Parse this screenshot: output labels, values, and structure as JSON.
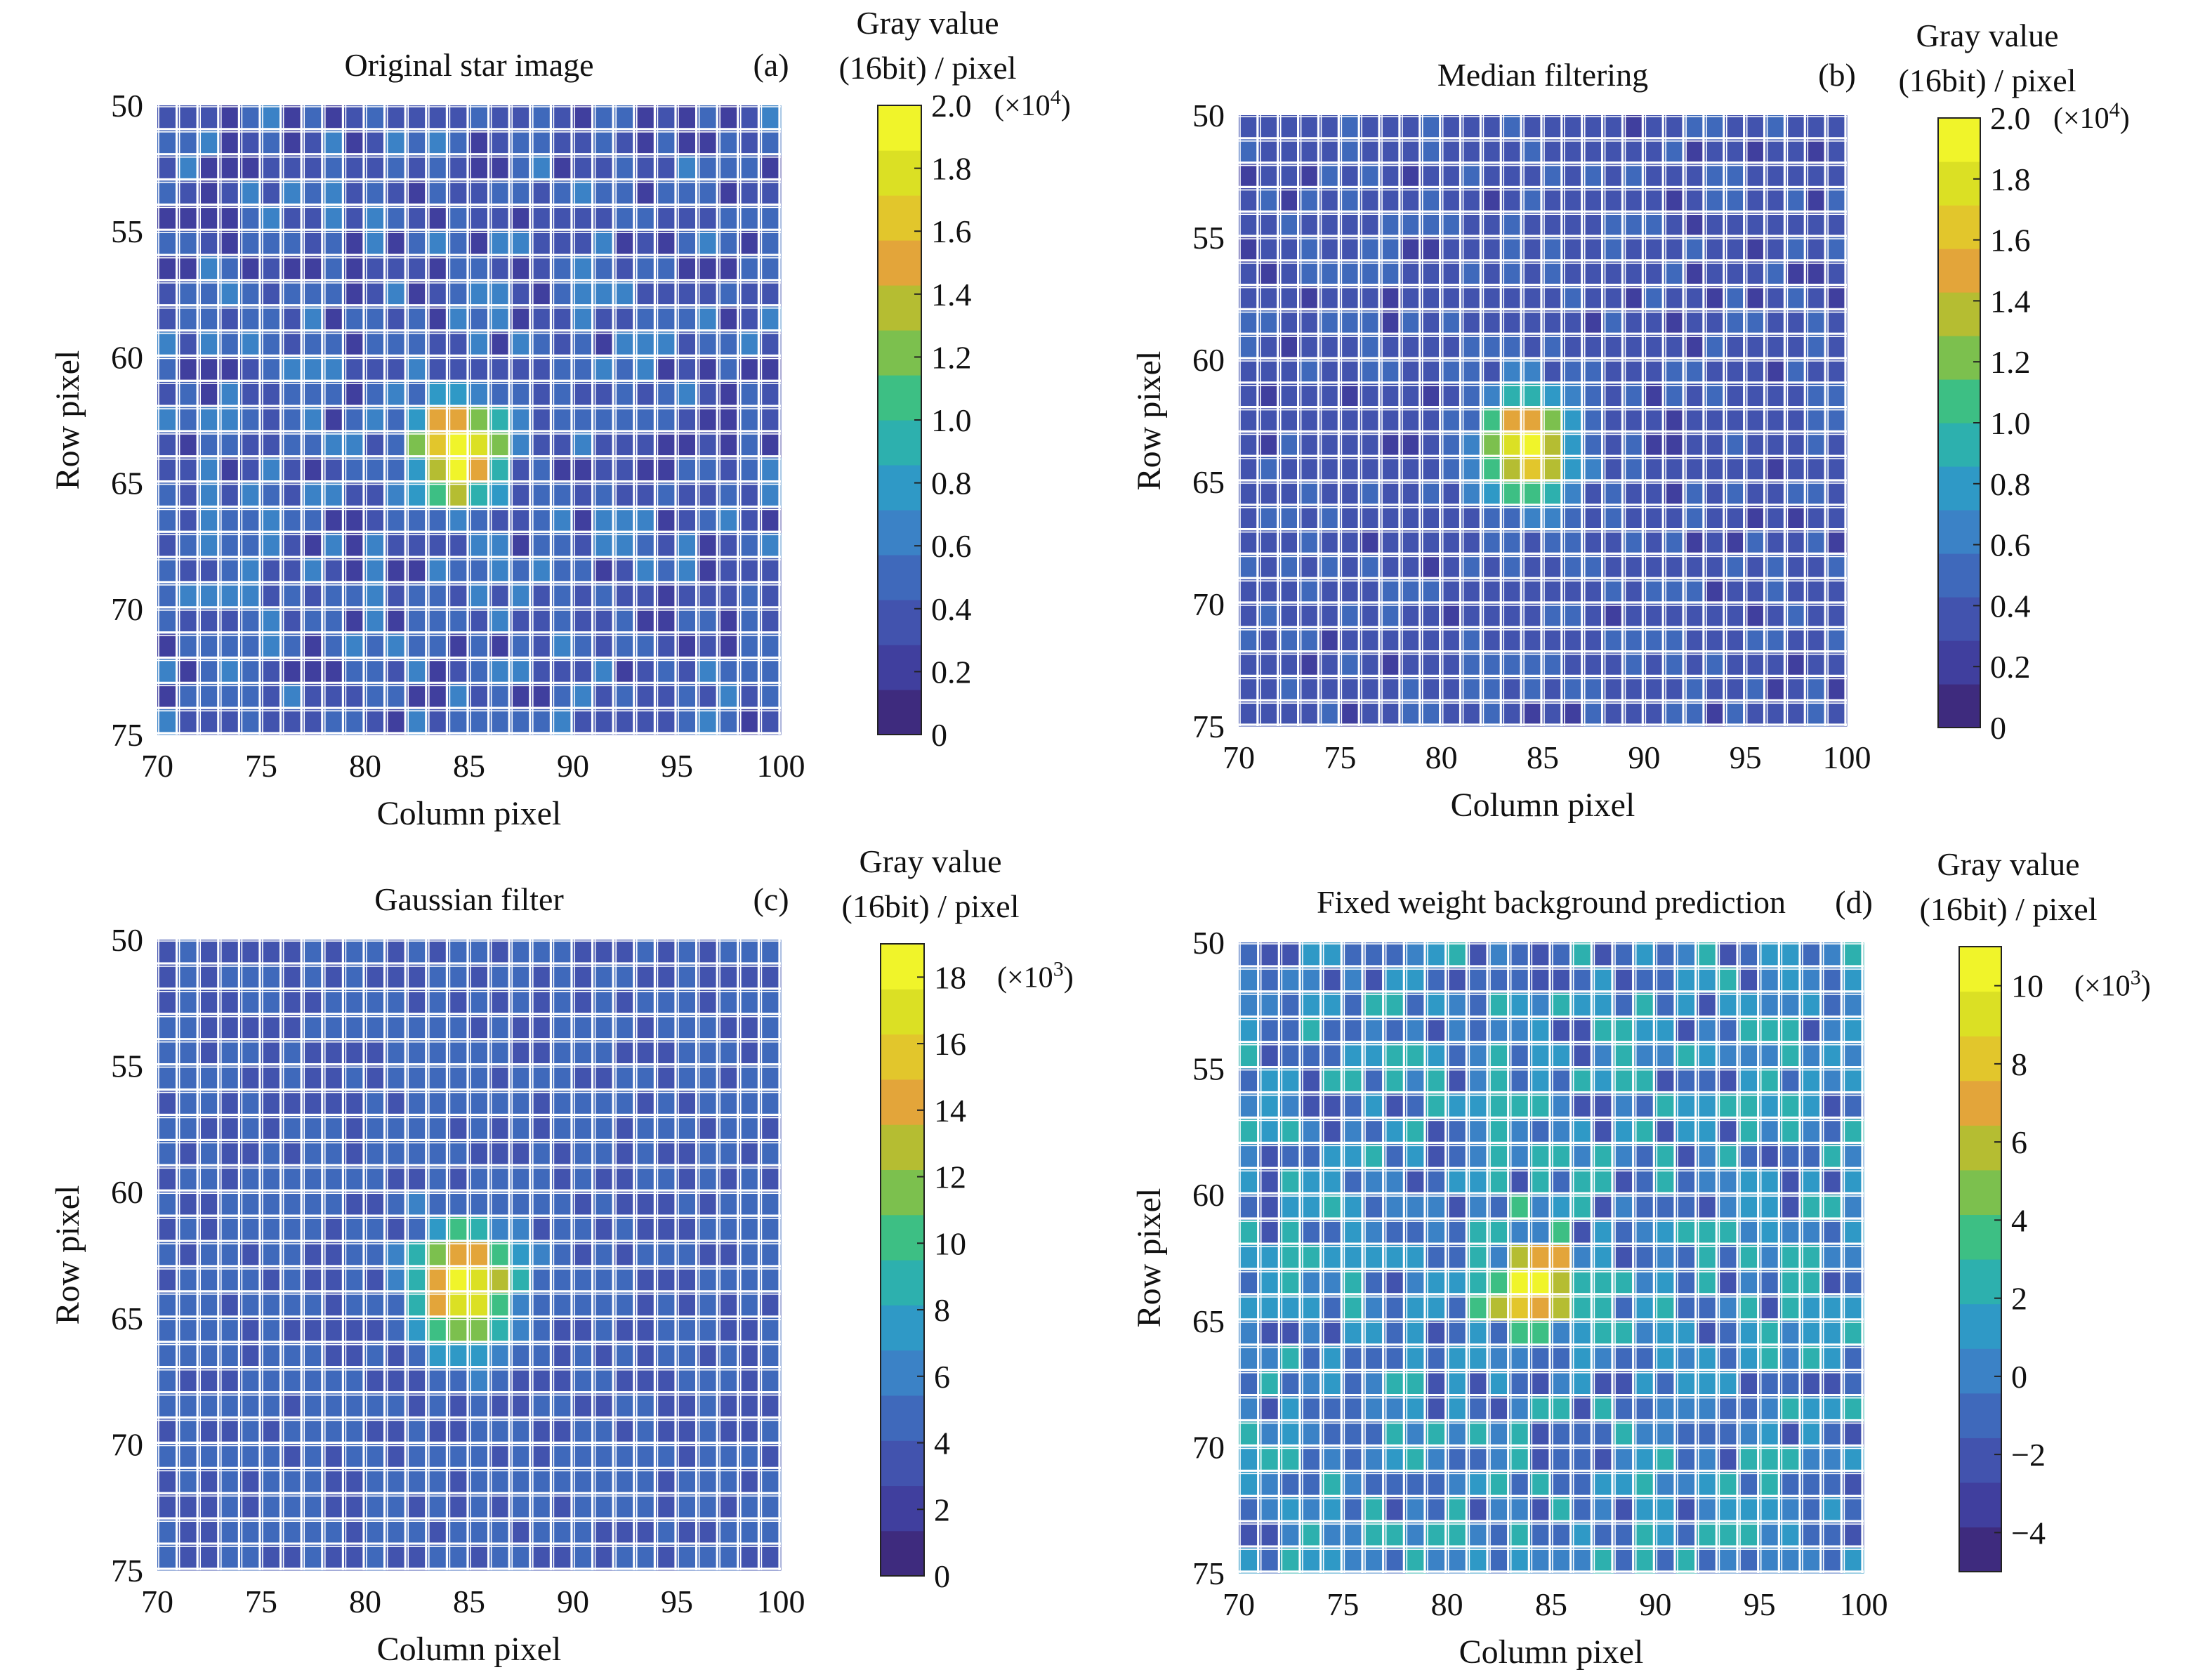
{
  "colors": {
    "grid_lines": "#ffffff",
    "colormap": [
      "#3e2b7e",
      "#403f9e",
      "#4253ae",
      "#3f69bb",
      "#3b82c6",
      "#2f99c6",
      "#2db0ae",
      "#3dbf84",
      "#7cc04e",
      "#b5bd32",
      "#e3a53a",
      "#e2c62c",
      "#dbe024",
      "#f0f42a"
    ]
  },
  "chart_data": [
    {
      "type": "heatmap",
      "panel_tag": "(a)",
      "title": "Original star image",
      "xlabel": "Column pixel",
      "ylabel": "Row pixel",
      "xlim": [
        70,
        100
      ],
      "ylim": [
        75,
        50
      ],
      "xticks": [
        70,
        75,
        80,
        85,
        90,
        95,
        100
      ],
      "yticks": [
        50,
        55,
        60,
        65,
        70,
        75
      ],
      "colorbar": {
        "title_line1": "Gray value",
        "title_line2": "(16bit) / pixel",
        "min": 0,
        "max": 20000,
        "ticks": [
          0,
          2000,
          4000,
          6000,
          8000,
          10000,
          12000,
          14000,
          16000,
          18000,
          20000
        ],
        "tick_labels": [
          "0",
          "0.2",
          "0.4",
          "0.6",
          "0.8",
          "1.0",
          "1.2",
          "1.4",
          "1.6",
          "1.8",
          "2.0"
        ],
        "multiplier_base": "(×10",
        "multiplier_exp": "4",
        "multiplier_close": ")"
      },
      "background_value": 4200,
      "noise_amplitude": 2200,
      "peak": {
        "column": 84.5,
        "row": 63.8,
        "amplitude": 15800,
        "sigma": 1.45
      }
    },
    {
      "type": "heatmap",
      "panel_tag": "(b)",
      "title": "Median filtering",
      "xlabel": "Column pixel",
      "ylabel": "Row pixel",
      "xlim": [
        70,
        100
      ],
      "ylim": [
        75,
        50
      ],
      "xticks": [
        70,
        75,
        80,
        85,
        90,
        95,
        100
      ],
      "yticks": [
        50,
        55,
        60,
        65,
        70,
        75
      ],
      "colorbar": {
        "title_line1": "Gray value",
        "title_line2": "(16bit) / pixel",
        "min": 0,
        "max": 20000,
        "ticks": [
          0,
          2000,
          4000,
          6000,
          8000,
          10000,
          12000,
          14000,
          16000,
          18000,
          20000
        ],
        "tick_labels": [
          "0",
          "0.2",
          "0.4",
          "0.6",
          "0.8",
          "1.0",
          "1.2",
          "1.4",
          "1.6",
          "1.8",
          "2.0"
        ],
        "multiplier_base": "(×10",
        "multiplier_exp": "4",
        "multiplier_close": ")"
      },
      "background_value": 3800,
      "noise_amplitude": 1100,
      "peak": {
        "column": 84.2,
        "row": 63.6,
        "amplitude": 15000,
        "sigma": 1.5
      }
    },
    {
      "type": "heatmap",
      "panel_tag": "(c)",
      "title": "Gaussian filter",
      "xlabel": "Column pixel",
      "ylabel": "Row pixel",
      "xlim": [
        70,
        100
      ],
      "ylim": [
        75,
        50
      ],
      "xticks": [
        70,
        75,
        80,
        85,
        90,
        95,
        100
      ],
      "yticks": [
        50,
        55,
        60,
        65,
        70,
        75
      ],
      "colorbar": {
        "title_line1": "Gray value",
        "title_line2": "(16bit) / pixel",
        "min": 0,
        "max": 19000,
        "ticks": [
          0,
          2000,
          4000,
          6000,
          8000,
          10000,
          12000,
          14000,
          16000,
          18000
        ],
        "tick_labels": [
          "0",
          "2",
          "4",
          "6",
          "8",
          "10",
          "12",
          "14",
          "16",
          "18"
        ],
        "multiplier_base": "(×10",
        "multiplier_exp": "3",
        "multiplier_close": ")"
      },
      "background_value": 4300,
      "noise_amplitude": 1000,
      "peak": {
        "column": 84.8,
        "row": 63.8,
        "amplitude": 14300,
        "sigma": 1.55
      }
    },
    {
      "type": "heatmap",
      "panel_tag": "(d)",
      "title": "Fixed weight background prediction",
      "xlabel": "Column pixel",
      "ylabel": "Row pixel",
      "xlim": [
        70,
        100
      ],
      "ylim": [
        75,
        50
      ],
      "xticks": [
        70,
        75,
        80,
        85,
        90,
        95,
        100
      ],
      "yticks": [
        50,
        55,
        60,
        65,
        70,
        75
      ],
      "colorbar": {
        "title_line1": "Gray value",
        "title_line2": "(16bit) / pixel",
        "min": -5000,
        "max": 11000,
        "ticks": [
          -4000,
          -2000,
          0,
          2000,
          4000,
          6000,
          8000,
          10000
        ],
        "tick_labels": [
          "−4",
          "−2",
          "0",
          "2",
          "4",
          "6",
          "8",
          "10"
        ],
        "multiplier_base": "(×10",
        "multiplier_exp": "3",
        "multiplier_close": ")"
      },
      "background_value": 400,
      "noise_amplitude": 2600,
      "peak": {
        "column": 84.2,
        "row": 63.6,
        "amplitude": 9600,
        "sigma": 1.25
      }
    }
  ]
}
